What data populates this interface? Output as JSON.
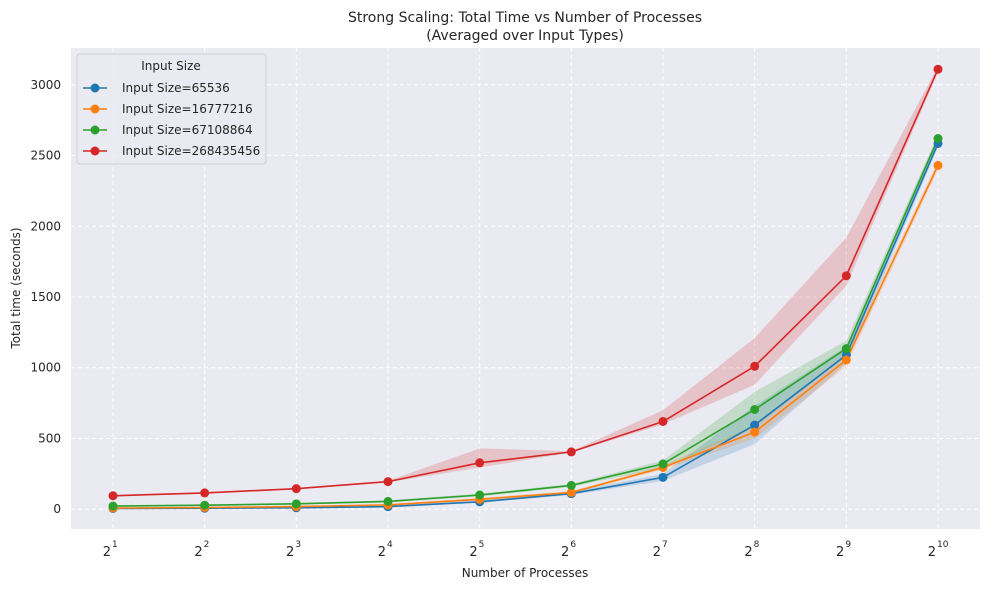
{
  "chart_data": {
    "type": "line",
    "title": "Strong Scaling: Total Time vs Number of Processes",
    "subtitle": "(Averaged over Input Types)",
    "xlabel": "Number of Processes",
    "ylabel": "Total time (seconds)",
    "x_scale": "log2",
    "x": [
      2,
      4,
      8,
      16,
      32,
      64,
      128,
      256,
      512,
      1024
    ],
    "x_tick_labels": [
      {
        "base": "2",
        "exp": "1"
      },
      {
        "base": "2",
        "exp": "2"
      },
      {
        "base": "2",
        "exp": "3"
      },
      {
        "base": "2",
        "exp": "4"
      },
      {
        "base": "2",
        "exp": "5"
      },
      {
        "base": "2",
        "exp": "6"
      },
      {
        "base": "2",
        "exp": "7"
      },
      {
        "base": "2",
        "exp": "8"
      },
      {
        "base": "2",
        "exp": "9"
      },
      {
        "base": "2",
        "exp": "10"
      }
    ],
    "y_ticks": [
      0,
      500,
      1000,
      1500,
      2000,
      2500,
      3000
    ],
    "ylim": [
      -140,
      3260
    ],
    "grid": true,
    "legend": {
      "title": "Input Size",
      "position": "top-left"
    },
    "series": [
      {
        "name": "Input Size=65536",
        "color": "#1f77b4",
        "values": [
          5,
          7,
          10,
          18,
          52,
          110,
          225,
          595,
          1090,
          2585
        ],
        "band_low": [
          2,
          4,
          6,
          12,
          45,
          100,
          200,
          460,
          1030,
          2560
        ],
        "band_high": [
          8,
          10,
          14,
          24,
          60,
          125,
          250,
          730,
          1150,
          2610
        ]
      },
      {
        "name": "Input Size=16777216",
        "color": "#ff7f0e",
        "values": [
          8,
          12,
          18,
          30,
          70,
          118,
          295,
          545,
          1055,
          2430
        ],
        "band_low": [
          5,
          9,
          14,
          24,
          60,
          108,
          280,
          500,
          1010,
          2400
        ],
        "band_high": [
          11,
          15,
          22,
          36,
          80,
          128,
          310,
          590,
          1100,
          2460
        ]
      },
      {
        "name": "Input Size=67108864",
        "color": "#2ca02c",
        "values": [
          22,
          28,
          38,
          55,
          100,
          168,
          320,
          705,
          1135,
          2620
        ],
        "band_low": [
          18,
          24,
          33,
          48,
          90,
          158,
          290,
          580,
          1080,
          2590
        ],
        "band_high": [
          26,
          32,
          43,
          62,
          110,
          178,
          345,
          830,
          1190,
          2650
        ]
      },
      {
        "name": "Input Size=268435456",
        "color": "#d62728",
        "values": [
          95,
          115,
          145,
          195,
          328,
          405,
          620,
          1010,
          1650,
          3110
        ],
        "band_low": [
          90,
          110,
          140,
          190,
          295,
          400,
          600,
          880,
          1580,
          3090
        ],
        "band_high": [
          100,
          120,
          150,
          200,
          430,
          410,
          700,
          1210,
          1920,
          3130
        ]
      }
    ]
  }
}
